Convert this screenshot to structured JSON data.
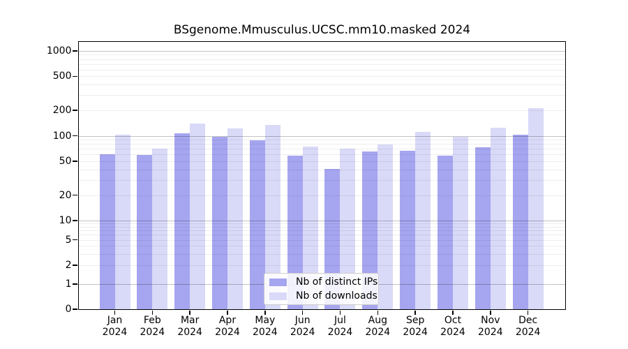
{
  "title": "BSgenome.Mmusculus.UCSC.mm10.masked 2024",
  "chart_data": {
    "type": "bar",
    "title": "BSgenome.Mmusculus.UCSC.mm10.masked 2024",
    "categories": [
      "Jan",
      "Feb",
      "Mar",
      "Apr",
      "May",
      "Jun",
      "Jul",
      "Aug",
      "Sep",
      "Oct",
      "Nov",
      "Dec"
    ],
    "year": "2024",
    "series": [
      {
        "name": "Nb of distinct IPs",
        "color": "#a5a5f0",
        "values": [
          61,
          59,
          107,
          98,
          88,
          58,
          41,
          65,
          66,
          58,
          73,
          102
        ]
      },
      {
        "name": "Nb of downloads",
        "color": "#d9d9f8",
        "values": [
          103,
          71,
          140,
          123,
          135,
          74,
          70,
          79,
          110,
          98,
          125,
          210
        ]
      }
    ],
    "y_ticks": [
      0,
      1,
      2,
      5,
      10,
      20,
      50,
      100,
      200,
      500,
      1000
    ],
    "ylim": [
      0,
      1000
    ],
    "yscale": "log-with-zero",
    "xlabel": "",
    "ylabel": "",
    "grid": true,
    "grid_over_bars": true,
    "legend_position": "bottom-center"
  }
}
